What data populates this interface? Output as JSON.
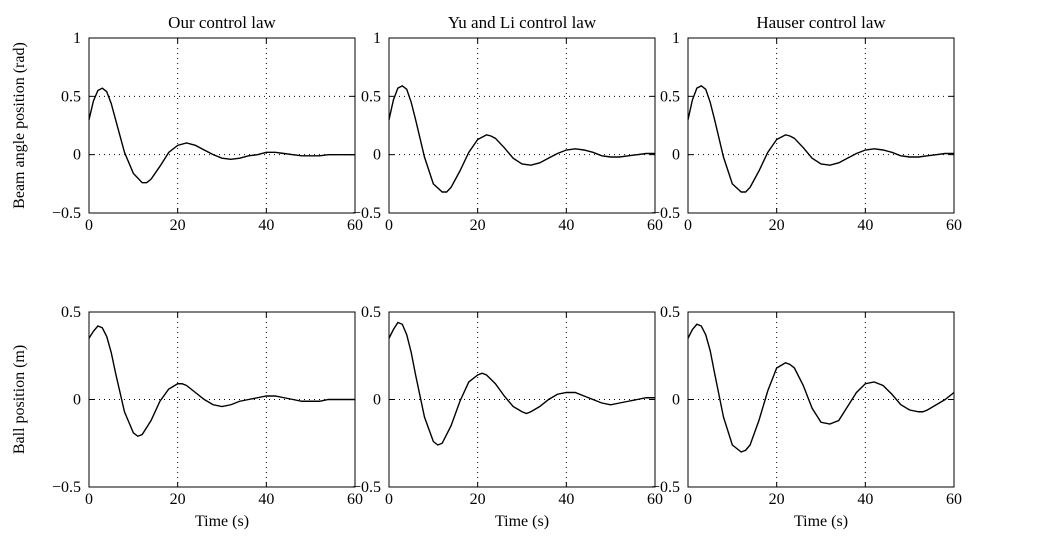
{
  "chart_data": [
    {
      "type": "line",
      "row": 0,
      "col": 0,
      "title": "Our control law",
      "ylabel": "Beam angle position (rad)",
      "xlabel": "",
      "xlim": [
        0,
        60
      ],
      "ylim": [
        -0.5,
        1
      ],
      "xticks": [
        0,
        20,
        40,
        60
      ],
      "yticks": [
        -0.5,
        0,
        0.5,
        1
      ],
      "xtick_labels": [
        "0",
        "20",
        "40",
        "60"
      ],
      "ytick_labels": [
        "−0.5",
        "0",
        "0.5",
        "1"
      ],
      "grid": true,
      "series": [
        {
          "x": [
            0,
            1,
            2,
            3,
            4,
            5,
            6,
            8,
            10,
            12,
            13,
            14,
            16,
            18,
            20,
            22,
            24,
            26,
            28,
            30,
            32,
            34,
            36,
            38,
            40,
            42,
            44,
            46,
            48,
            50,
            52,
            54,
            56,
            58,
            60
          ],
          "y": [
            0.3,
            0.46,
            0.55,
            0.57,
            0.54,
            0.44,
            0.3,
            0.02,
            -0.16,
            -0.24,
            -0.24,
            -0.21,
            -0.1,
            0.02,
            0.08,
            0.1,
            0.08,
            0.04,
            0.0,
            -0.03,
            -0.04,
            -0.03,
            -0.01,
            0.0,
            0.02,
            0.02,
            0.01,
            0.0,
            -0.01,
            -0.01,
            -0.01,
            0.0,
            0.0,
            0.0,
            0.0
          ]
        }
      ]
    },
    {
      "type": "line",
      "row": 0,
      "col": 1,
      "title": "Yu and Li control law",
      "ylabel": "",
      "xlabel": "",
      "xlim": [
        0,
        60
      ],
      "ylim": [
        -0.5,
        1
      ],
      "xticks": [
        0,
        20,
        40,
        60
      ],
      "yticks": [
        -0.5,
        0,
        0.5,
        1
      ],
      "xtick_labels": [
        "0",
        "20",
        "40",
        "60"
      ],
      "ytick_labels": [
        "−0.5",
        "0",
        "0.5",
        "1"
      ],
      "grid": true,
      "series": [
        {
          "x": [
            0,
            1,
            2,
            3,
            4,
            5,
            6,
            8,
            10,
            12,
            13,
            14,
            16,
            18,
            20,
            22,
            23,
            24,
            26,
            28,
            30,
            32,
            34,
            36,
            38,
            40,
            42,
            44,
            46,
            48,
            50,
            52,
            54,
            56,
            58,
            60
          ],
          "y": [
            0.3,
            0.47,
            0.57,
            0.59,
            0.56,
            0.45,
            0.3,
            -0.02,
            -0.25,
            -0.32,
            -0.32,
            -0.28,
            -0.14,
            0.02,
            0.13,
            0.17,
            0.16,
            0.14,
            0.06,
            -0.03,
            -0.08,
            -0.09,
            -0.07,
            -0.03,
            0.01,
            0.04,
            0.05,
            0.04,
            0.02,
            -0.01,
            -0.02,
            -0.02,
            -0.01,
            0.0,
            0.01,
            0.01
          ]
        }
      ]
    },
    {
      "type": "line",
      "row": 0,
      "col": 2,
      "title": "Hauser control law",
      "ylabel": "",
      "xlabel": "",
      "xlim": [
        0,
        60
      ],
      "ylim": [
        -0.5,
        1
      ],
      "xticks": [
        0,
        20,
        40,
        60
      ],
      "yticks": [
        -0.5,
        0,
        0.5,
        1
      ],
      "xtick_labels": [
        "0",
        "20",
        "40",
        "60"
      ],
      "ytick_labels": [
        "−0.5",
        "0",
        "0.5",
        "1"
      ],
      "grid": true,
      "series": [
        {
          "x": [
            0,
            1,
            2,
            3,
            4,
            5,
            6,
            8,
            10,
            12,
            13,
            14,
            16,
            18,
            20,
            22,
            23,
            24,
            26,
            28,
            30,
            32,
            34,
            36,
            38,
            40,
            42,
            44,
            46,
            48,
            50,
            52,
            54,
            56,
            58,
            60
          ],
          "y": [
            0.3,
            0.47,
            0.57,
            0.59,
            0.56,
            0.45,
            0.3,
            -0.02,
            -0.25,
            -0.32,
            -0.32,
            -0.28,
            -0.14,
            0.02,
            0.13,
            0.17,
            0.16,
            0.14,
            0.06,
            -0.03,
            -0.08,
            -0.09,
            -0.07,
            -0.03,
            0.01,
            0.04,
            0.05,
            0.04,
            0.02,
            -0.01,
            -0.02,
            -0.02,
            -0.01,
            0.0,
            0.01,
            0.01
          ]
        }
      ]
    },
    {
      "type": "line",
      "row": 1,
      "col": 0,
      "title": "",
      "ylabel": "Ball position (m)",
      "xlabel": "Time (s)",
      "xlim": [
        0,
        60
      ],
      "ylim": [
        -0.5,
        0.5
      ],
      "xticks": [
        0,
        20,
        40,
        60
      ],
      "yticks": [
        -0.5,
        0,
        0.5
      ],
      "xtick_labels": [
        "0",
        "20",
        "40",
        "60"
      ],
      "ytick_labels": [
        "−0.5",
        "0",
        "0.5"
      ],
      "grid": true,
      "series": [
        {
          "x": [
            0,
            1,
            2,
            3,
            4,
            5,
            6,
            8,
            10,
            11,
            12,
            14,
            16,
            18,
            20,
            21,
            22,
            24,
            26,
            28,
            30,
            32,
            34,
            36,
            38,
            40,
            42,
            44,
            46,
            48,
            50,
            52,
            54,
            56,
            58,
            60
          ],
          "y": [
            0.35,
            0.39,
            0.42,
            0.41,
            0.36,
            0.27,
            0.15,
            -0.07,
            -0.19,
            -0.21,
            -0.2,
            -0.12,
            -0.01,
            0.06,
            0.09,
            0.09,
            0.08,
            0.04,
            0.0,
            -0.03,
            -0.04,
            -0.03,
            -0.01,
            0.0,
            0.01,
            0.02,
            0.02,
            0.01,
            0.0,
            -0.01,
            -0.01,
            -0.01,
            0.0,
            0.0,
            0.0,
            0.0
          ]
        }
      ]
    },
    {
      "type": "line",
      "row": 1,
      "col": 1,
      "title": "",
      "ylabel": "",
      "xlabel": "Time (s)",
      "xlim": [
        0,
        60
      ],
      "ylim": [
        -0.5,
        0.5
      ],
      "xticks": [
        0,
        20,
        40,
        60
      ],
      "yticks": [
        -0.5,
        0,
        0.5
      ],
      "xtick_labels": [
        "0",
        "20",
        "40",
        "60"
      ],
      "ytick_labels": [
        "−0.5",
        "0",
        "0.5"
      ],
      "grid": true,
      "series": [
        {
          "x": [
            0,
            1,
            2,
            3,
            4,
            5,
            6,
            8,
            10,
            11,
            12,
            14,
            16,
            18,
            20,
            21,
            22,
            24,
            26,
            28,
            30,
            31,
            32,
            34,
            36,
            38,
            40,
            42,
            44,
            46,
            48,
            50,
            52,
            54,
            56,
            58,
            60
          ],
          "y": [
            0.35,
            0.4,
            0.44,
            0.43,
            0.37,
            0.27,
            0.14,
            -0.1,
            -0.24,
            -0.26,
            -0.25,
            -0.15,
            -0.01,
            0.1,
            0.14,
            0.15,
            0.14,
            0.09,
            0.02,
            -0.04,
            -0.07,
            -0.08,
            -0.07,
            -0.04,
            0.0,
            0.03,
            0.04,
            0.04,
            0.02,
            0.0,
            -0.02,
            -0.03,
            -0.02,
            -0.01,
            0.0,
            0.01,
            0.01
          ]
        }
      ]
    },
    {
      "type": "line",
      "row": 1,
      "col": 2,
      "title": "",
      "ylabel": "",
      "xlabel": "Time (s)",
      "xlim": [
        0,
        60
      ],
      "ylim": [
        -0.5,
        0.5
      ],
      "xticks": [
        0,
        20,
        40,
        60
      ],
      "yticks": [
        -0.5,
        0,
        0.5
      ],
      "xtick_labels": [
        "0",
        "20",
        "40",
        "60"
      ],
      "ytick_labels": [
        "−0.5",
        "0",
        "0.5"
      ],
      "grid": true,
      "series": [
        {
          "x": [
            0,
            1,
            2,
            3,
            4,
            5,
            6,
            8,
            10,
            12,
            13,
            14,
            16,
            18,
            20,
            22,
            23,
            24,
            26,
            28,
            30,
            32,
            33,
            34,
            36,
            38,
            40,
            42,
            43,
            44,
            46,
            48,
            50,
            52,
            53,
            54,
            56,
            58,
            60
          ],
          "y": [
            0.35,
            0.4,
            0.43,
            0.42,
            0.37,
            0.28,
            0.15,
            -0.1,
            -0.26,
            -0.3,
            -0.29,
            -0.26,
            -0.12,
            0.05,
            0.18,
            0.21,
            0.2,
            0.18,
            0.08,
            -0.05,
            -0.13,
            -0.14,
            -0.13,
            -0.12,
            -0.04,
            0.04,
            0.09,
            0.1,
            0.09,
            0.08,
            0.03,
            -0.03,
            -0.06,
            -0.07,
            -0.07,
            -0.06,
            -0.03,
            0.0,
            0.04
          ]
        }
      ]
    }
  ]
}
